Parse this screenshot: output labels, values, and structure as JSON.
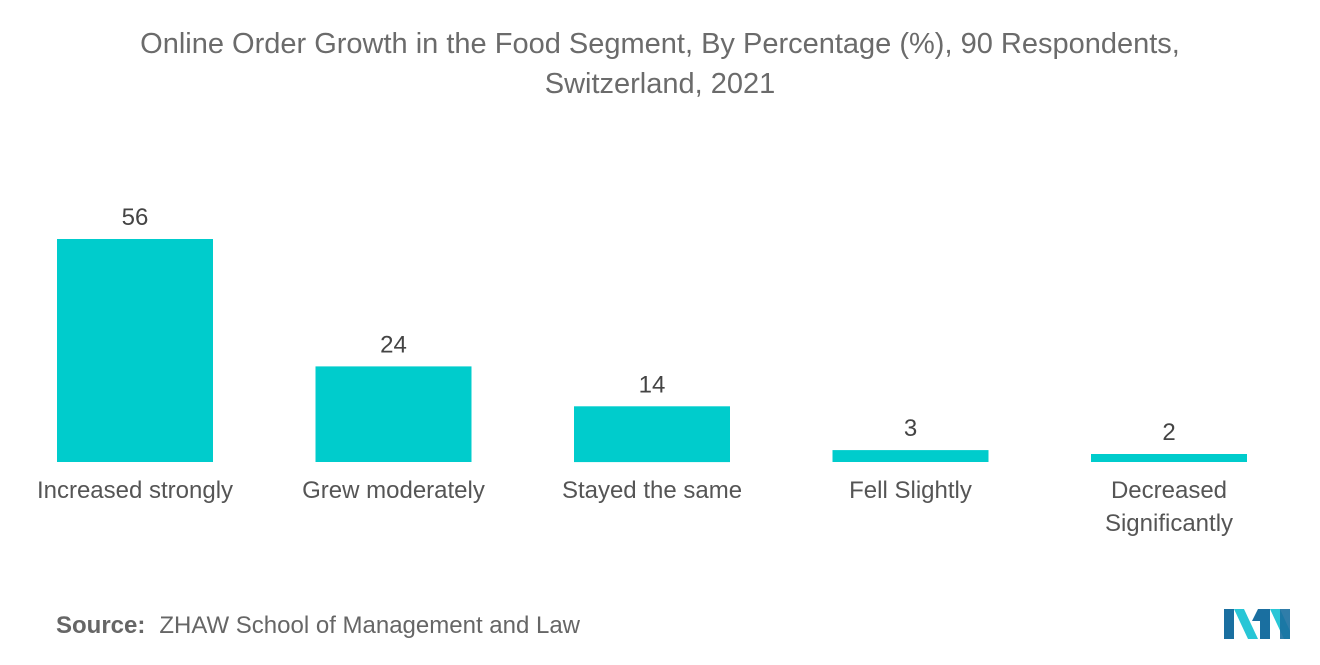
{
  "title": "Online Order Growth in the Food Segment, By Percentage (%), 90 Respondents,\nSwitzerland, 2021",
  "source": {
    "prefix": "Source:",
    "text": "ZHAW School of Management and Law"
  },
  "logo": {
    "icon": "mordor-intelligence-logo-icon",
    "colors": [
      "#1a6fa0",
      "#28c6d6"
    ]
  },
  "colors": {
    "bar": "#00cccc"
  },
  "chart_data": {
    "type": "bar",
    "title": "Online Order Growth in the Food Segment, By Percentage (%), 90 Respondents, Switzerland, 2021",
    "categories": [
      [
        "Increased strongly"
      ],
      [
        "Grew moderately"
      ],
      [
        "Stayed the same"
      ],
      [
        "Fell Slightly"
      ],
      [
        "Decreased",
        "Significantly"
      ]
    ],
    "values": [
      56,
      24,
      14,
      3,
      2
    ],
    "xlabel": "",
    "ylabel": "",
    "grid": false,
    "data_labels": true
  }
}
